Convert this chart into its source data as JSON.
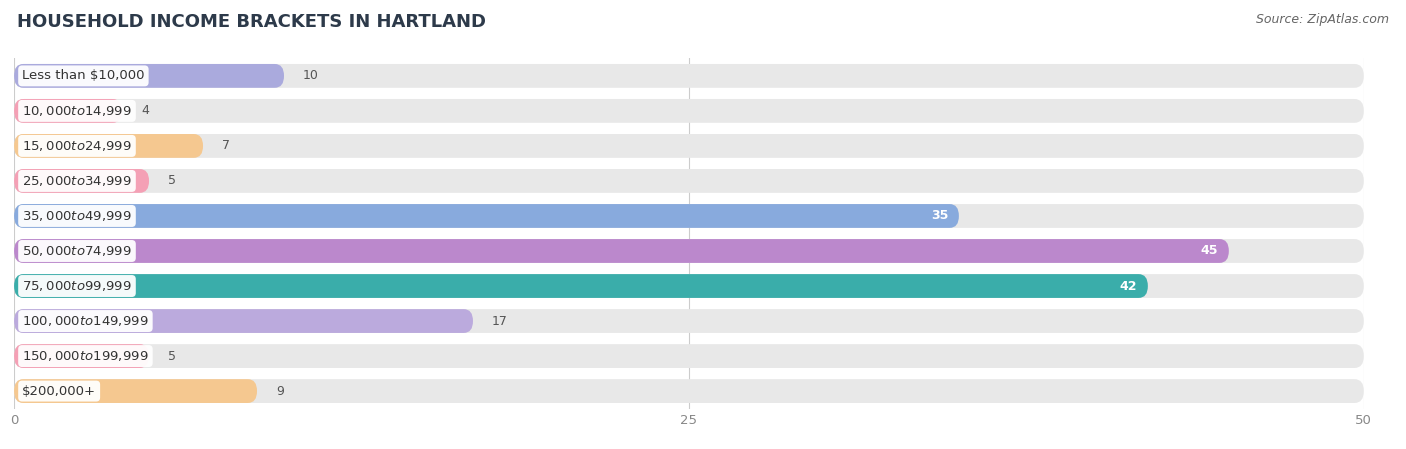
{
  "title": "HOUSEHOLD INCOME BRACKETS IN HARTLAND",
  "source": "Source: ZipAtlas.com",
  "categories": [
    "Less than $10,000",
    "$10,000 to $14,999",
    "$15,000 to $24,999",
    "$25,000 to $34,999",
    "$35,000 to $49,999",
    "$50,000 to $74,999",
    "$75,000 to $99,999",
    "$100,000 to $149,999",
    "$150,000 to $199,999",
    "$200,000+"
  ],
  "values": [
    10,
    4,
    7,
    5,
    35,
    45,
    42,
    17,
    5,
    9
  ],
  "bar_colors": [
    "#aaaadd",
    "#f4a0b5",
    "#f5c890",
    "#f4a0b5",
    "#88aadd",
    "#bb88cc",
    "#3aadaa",
    "#bbaadd",
    "#f4a0b5",
    "#f5c890"
  ],
  "xlim": [
    0,
    50
  ],
  "xticks": [
    0,
    25,
    50
  ],
  "background_color": "#f7f7f7",
  "bar_bg_color": "#e8e8e8",
  "title_fontsize": 13,
  "label_fontsize": 9.5,
  "value_fontsize": 9,
  "source_fontsize": 9
}
